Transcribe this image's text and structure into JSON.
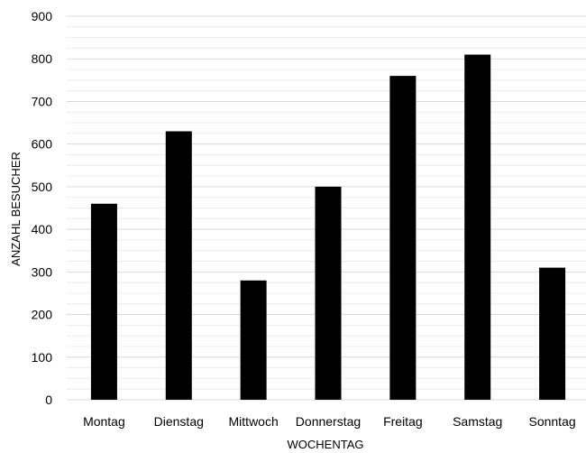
{
  "chart_data": {
    "type": "bar",
    "title": "",
    "xlabel": "WOCHENTAG",
    "ylabel": "ANZAHL BESUCHER",
    "categories": [
      "Montag",
      "Dienstag",
      "Mittwoch",
      "Donnerstag",
      "Freitag",
      "Samstag",
      "Sonntag"
    ],
    "values": [
      460,
      630,
      280,
      500,
      760,
      810,
      310
    ],
    "ylim": [
      0,
      900
    ],
    "yticks": [
      0,
      100,
      200,
      300,
      400,
      500,
      600,
      700,
      800,
      900
    ],
    "major_grid": true,
    "minor_grid": true,
    "legend": "none",
    "colors": {
      "bar": "#000000",
      "grid_major": "#d9d9d9",
      "grid_minor": "#ececec",
      "text": "#000000"
    }
  }
}
